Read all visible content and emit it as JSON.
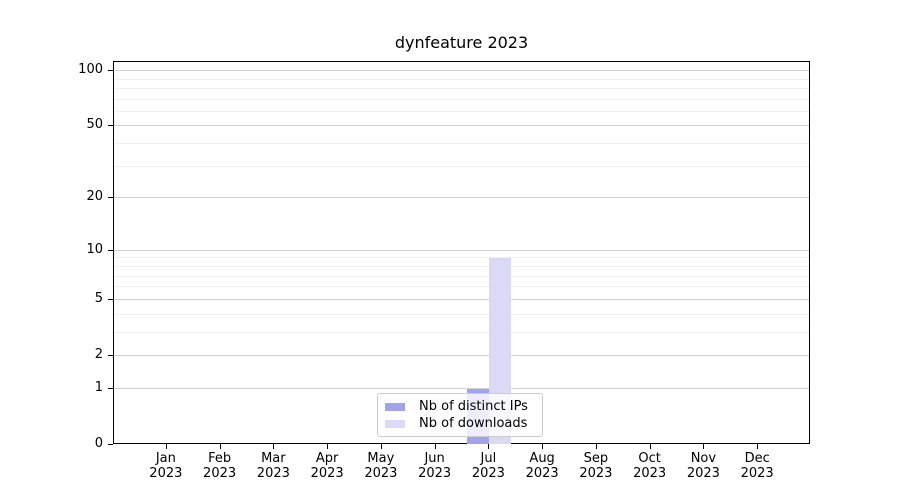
{
  "title": "dynfeature 2023",
  "colors": {
    "distinct_ips": "#a3a3ed",
    "downloads": "#dadaf7",
    "major_grid": "#d0d0d0",
    "minor_grid": "#efefef",
    "spine": "#000000"
  },
  "legend": {
    "items": [
      {
        "label": "Nb of distinct IPs",
        "color_key": "distinct_ips"
      },
      {
        "label": "Nb of downloads",
        "color_key": "downloads"
      }
    ]
  },
  "chart_data": {
    "type": "bar",
    "title": "dynfeature 2023",
    "categories": [
      "Jan 2023",
      "Feb 2023",
      "Mar 2023",
      "Apr 2023",
      "May 2023",
      "Jun 2023",
      "Jul 2023",
      "Aug 2023",
      "Sep 2023",
      "Oct 2023",
      "Nov 2023",
      "Dec 2023"
    ],
    "series": [
      {
        "name": "Nb of distinct IPs",
        "color_key": "distinct_ips",
        "values": [
          0,
          0,
          0,
          0,
          0,
          0,
          1,
          0,
          0,
          0,
          0,
          0
        ]
      },
      {
        "name": "Nb of downloads",
        "color_key": "downloads",
        "values": [
          0,
          0,
          0,
          0,
          0,
          0,
          9,
          0,
          0,
          0,
          0,
          0
        ]
      }
    ],
    "xlabel": "",
    "ylabel": "",
    "yscale": "log1p",
    "ylim": [
      0,
      112
    ],
    "y_major_ticks": [
      0,
      1,
      2,
      5,
      10,
      20,
      50,
      100
    ],
    "y_minor_ticks": [
      3,
      4,
      6,
      7,
      8,
      9,
      30,
      40,
      60,
      70,
      80,
      90
    ],
    "grid": true,
    "legend_position": "lower center"
  }
}
